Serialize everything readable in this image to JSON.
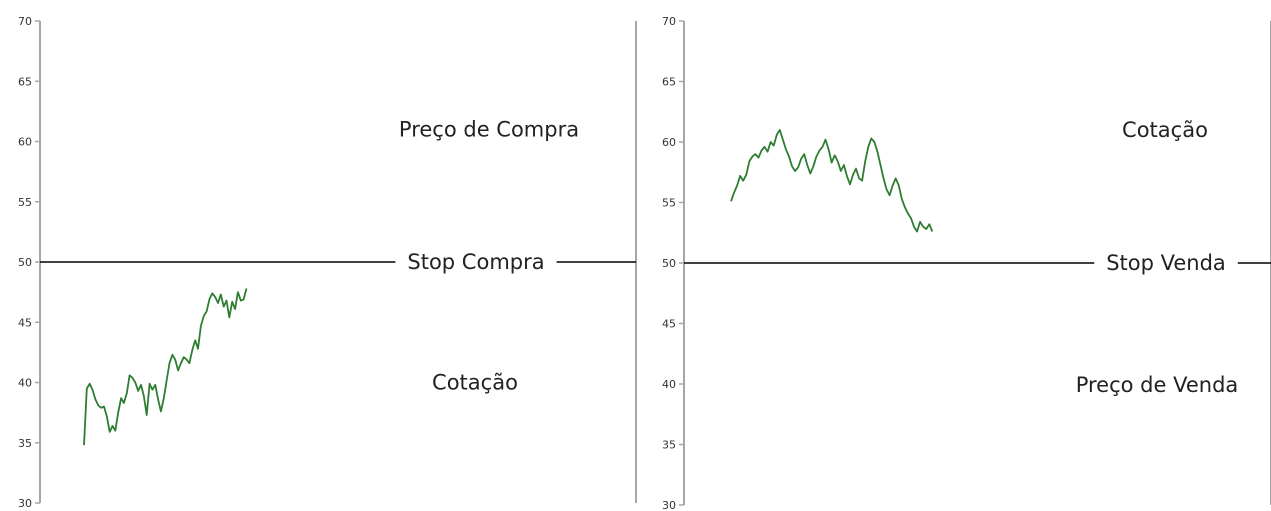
{
  "chart_data": [
    {
      "type": "line",
      "ylim": [
        30,
        70
      ],
      "y_ticks": [
        30,
        35,
        40,
        45,
        50,
        55,
        60,
        65,
        70
      ],
      "grid": false,
      "series_color": "#2e7d32",
      "reference_line": {
        "value": 50,
        "label": "Stop Compra",
        "color": "#000000"
      },
      "annotations": [
        {
          "text": "Preço de Compra",
          "y": 61
        },
        {
          "text": "Cotação",
          "y": 40
        }
      ],
      "series": [
        {
          "values": [
            34.8,
            39.5,
            39.9,
            39.4,
            38.6,
            38.1,
            37.9,
            38.0,
            37.2,
            35.9,
            36.4,
            36.0,
            37.5,
            38.7,
            38.3,
            39.1,
            40.6,
            40.4,
            40.0,
            39.3,
            39.8,
            38.9,
            37.3,
            39.9,
            39.4,
            39.8,
            38.6,
            37.6,
            38.7,
            40.2,
            41.6,
            42.3,
            41.9,
            41.0,
            41.6,
            42.1,
            41.9,
            41.6,
            42.7,
            43.5,
            42.8,
            44.7,
            45.5,
            45.9,
            46.9,
            47.4,
            47.1,
            46.6,
            47.3,
            46.3,
            46.8,
            45.4,
            46.7,
            46.1,
            47.5,
            46.8,
            46.9,
            47.8
          ]
        }
      ]
    },
    {
      "type": "line",
      "ylim": [
        30,
        70
      ],
      "y_ticks": [
        30,
        35,
        40,
        45,
        50,
        55,
        60,
        65,
        70
      ],
      "grid": false,
      "series_color": "#2e7d32",
      "reference_line": {
        "value": 50,
        "label": "Stop Venda",
        "color": "#000000"
      },
      "annotations": [
        {
          "text": "Cotação",
          "y": 61
        },
        {
          "text": "Preço de Venda",
          "y": 39.9
        }
      ],
      "series": [
        {
          "values": [
            55.1,
            55.8,
            56.4,
            57.2,
            56.8,
            57.3,
            58.4,
            58.8,
            59.0,
            58.7,
            59.3,
            59.6,
            59.2,
            60.0,
            59.7,
            60.6,
            61.0,
            60.2,
            59.4,
            58.8,
            58.0,
            57.6,
            57.9,
            58.6,
            59.0,
            58.1,
            57.4,
            58.0,
            58.8,
            59.3,
            59.6,
            60.2,
            59.4,
            58.3,
            58.9,
            58.4,
            57.6,
            58.1,
            57.2,
            56.5,
            57.3,
            57.8,
            57.0,
            56.8,
            58.4,
            59.6,
            60.3,
            60.0,
            59.2,
            58.1,
            57.0,
            56.1,
            55.6,
            56.4,
            57.0,
            56.4,
            55.3,
            54.6,
            54.1,
            53.7,
            53.0,
            52.6,
            53.4,
            53.0,
            52.8,
            53.2,
            52.6
          ]
        }
      ]
    }
  ]
}
